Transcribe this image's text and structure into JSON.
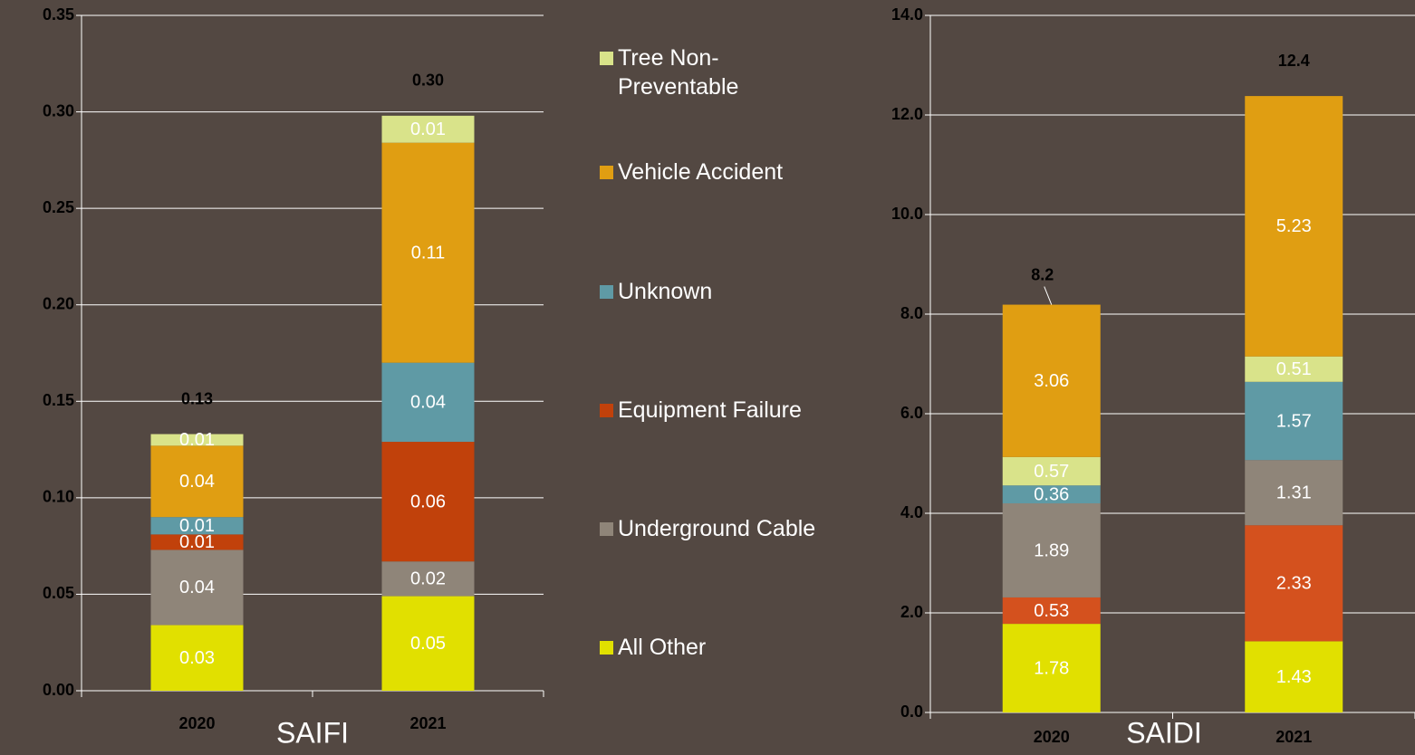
{
  "chart_data": [
    {
      "type": "bar",
      "stacked": true,
      "x_label": "SAIFI",
      "categories": [
        "2020",
        "2021"
      ],
      "ylim": [
        0,
        0.35
      ],
      "yticks": [
        {
          "value": 0,
          "label": "0.00"
        },
        {
          "value": 0.05,
          "label": "0.05"
        },
        {
          "value": 0.1,
          "label": "0.10"
        },
        {
          "value": 0.15,
          "label": "0.15"
        },
        {
          "value": 0.2,
          "label": "0.20"
        },
        {
          "value": 0.25,
          "label": "0.25"
        },
        {
          "value": 0.3,
          "label": "0.30"
        },
        {
          "value": 0.35,
          "label": "0.35"
        }
      ],
      "grid": true,
      "series": [
        {
          "name": "All Other",
          "color": "#e1e000",
          "values": [
            0.034,
            0.049
          ],
          "value_labels": [
            "0.03",
            "0.05"
          ]
        },
        {
          "name": "Underground Cable",
          "color": "#8f8579",
          "values": [
            0.039,
            0.018
          ],
          "value_labels": [
            "0.04",
            "0.02"
          ]
        },
        {
          "name": "Equipment Failure",
          "color": "#c1410b",
          "values": [
            0.008,
            0.062
          ],
          "value_labels": [
            "0.01",
            "0.06"
          ]
        },
        {
          "name": "Unknown",
          "color": "#5f9aa5",
          "values": [
            0.009,
            0.041
          ],
          "value_labels": [
            "0.01",
            "0.04"
          ]
        },
        {
          "name": "Vehicle Accident",
          "color": "#e09e12",
          "values": [
            0.037,
            0.114
          ],
          "value_labels": [
            "0.04",
            "0.11"
          ]
        },
        {
          "name": "Tree Non-Preventable",
          "color": "#d9e38a",
          "values": [
            0.006,
            0.014
          ],
          "value_labels": [
            "0.01",
            "0.01"
          ]
        }
      ],
      "totals": [
        0.133,
        0.298
      ],
      "total_labels": [
        "0.13",
        "0.30"
      ]
    },
    {
      "type": "bar",
      "stacked": true,
      "x_label": "SAIDI",
      "categories": [
        "2020",
        "2021"
      ],
      "ylim": [
        0,
        14
      ],
      "yticks": [
        {
          "value": 0,
          "label": "0.0"
        },
        {
          "value": 2,
          "label": "2.0"
        },
        {
          "value": 4,
          "label": "4.0"
        },
        {
          "value": 6,
          "label": "6.0"
        },
        {
          "value": 8,
          "label": "8.0"
        },
        {
          "value": 10,
          "label": "10.0"
        },
        {
          "value": 12,
          "label": "12.0"
        },
        {
          "value": 14,
          "label": "14.0"
        }
      ],
      "grid": true,
      "series": [
        {
          "color": "#e1e000",
          "values": [
            1.78,
            1.43
          ]
        },
        {
          "color": "#d4511e",
          "values": [
            0.53,
            2.33
          ]
        },
        {
          "color": "#8f8579",
          "values": [
            1.89,
            1.31
          ]
        },
        {
          "color": "#5f9aa5",
          "values": [
            0.36,
            1.57
          ]
        },
        {
          "color": "#d9e38a",
          "values": [
            0.57,
            0.51
          ]
        },
        {
          "color": "#e09e12",
          "values": [
            3.06,
            5.23
          ]
        }
      ],
      "totals": [
        8.19,
        12.38
      ],
      "total_labels": [
        "8.2",
        "12.4"
      ]
    }
  ]
}
